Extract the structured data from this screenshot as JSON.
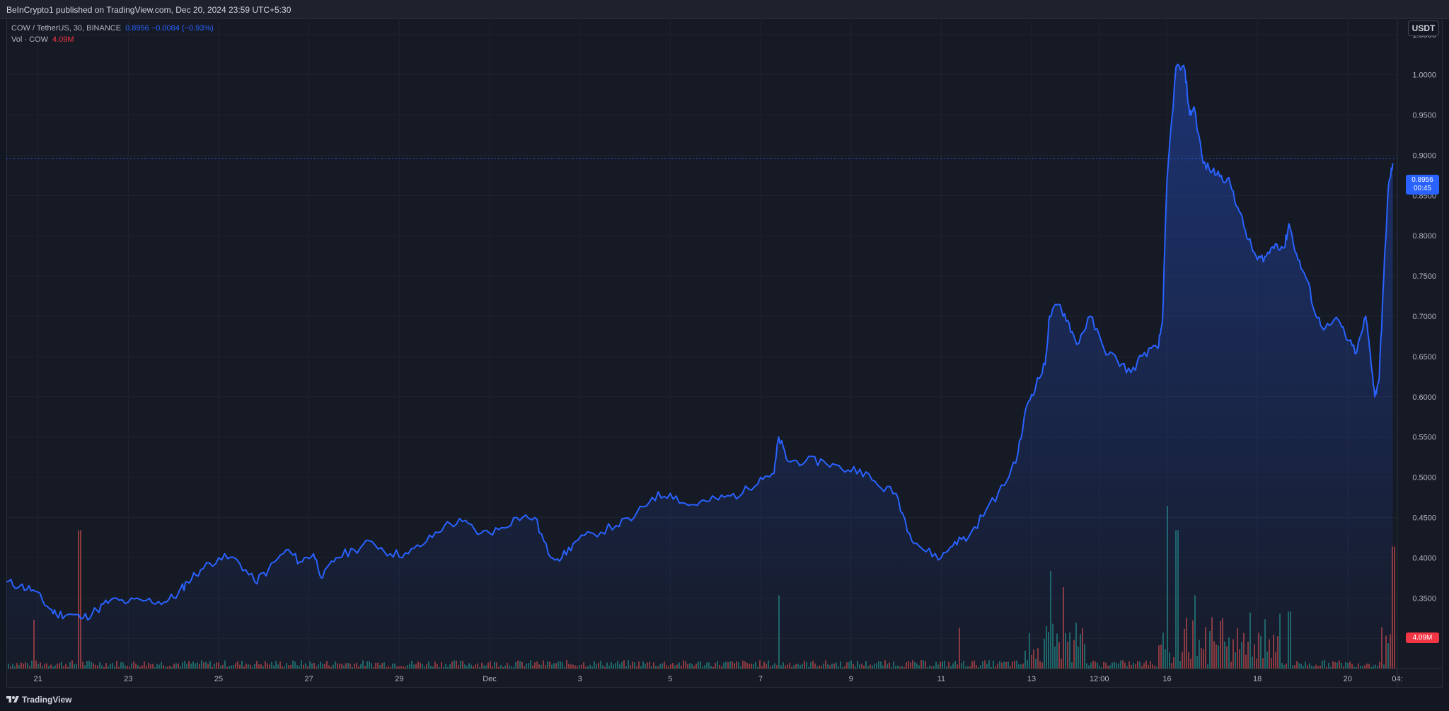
{
  "header": {
    "published_text": "BeInCrypto1 published on TradingView.com, Dec 20, 2024 23:59 UTC+5:30"
  },
  "legend": {
    "symbol": "COW / TetherUS, 30, BINANCE",
    "price_change": "0.8956  −0.0084 (−0.93%)",
    "volume_label": "Vol · COW",
    "volume_value": "4.09M"
  },
  "currency_button": "USDT",
  "price_tag": {
    "price": "0.8956",
    "countdown": "00:45"
  },
  "volume_tag": "4.09M",
  "footer": {
    "brand": "TradingView"
  },
  "colors": {
    "line": "#2962ff",
    "area_top": "#2962ff",
    "volume_up": "#26a69a",
    "volume_down": "#ef5350",
    "grid": "#1f2330",
    "axis_text": "#b2b5be"
  },
  "chart_data": {
    "type": "area",
    "title": "COW / TetherUS, 30, BINANCE",
    "xlabel": "",
    "ylabel": "",
    "grid": true,
    "legend_position": "top-left",
    "ylim": [
      0.265,
      1.07
    ],
    "y_ticks": [
      "1.0500",
      "1.0000",
      "0.9500",
      "0.9000",
      "0.8500",
      "0.8000",
      "0.7500",
      "0.7000",
      "0.6500",
      "0.6000",
      "0.5500",
      "0.5000",
      "0.4500",
      "0.4000",
      "0.3500",
      "0.3000"
    ],
    "y_tick_values": [
      1.05,
      1.0,
      0.95,
      0.9,
      0.85,
      0.8,
      0.75,
      0.7,
      0.65,
      0.6,
      0.55,
      0.5,
      0.45,
      0.4,
      0.35,
      0.3
    ],
    "x_ticks": [
      "21",
      "23",
      "25",
      "27",
      "29",
      "Dec",
      "3",
      "5",
      "7",
      "9",
      "11",
      "13",
      "12:00",
      "16",
      "18",
      "20",
      "04:"
    ],
    "x_tick_positions_days": [
      0,
      2,
      4,
      6,
      8,
      10,
      12,
      14,
      16,
      18,
      20,
      22,
      23.5,
      25,
      27,
      29,
      30.1
    ],
    "x_start_day": -0.7,
    "x_end_day": 30.1,
    "series": [
      {
        "values_xy": [
          [
            -0.7,
            0.37
          ],
          [
            -0.4,
            0.365
          ],
          [
            -0.1,
            0.36
          ],
          [
            0.2,
            0.34
          ],
          [
            0.4,
            0.33
          ],
          [
            0.7,
            0.33
          ],
          [
            1.0,
            0.325
          ],
          [
            1.3,
            0.335
          ],
          [
            1.6,
            0.347
          ],
          [
            2.0,
            0.345
          ],
          [
            2.4,
            0.347
          ],
          [
            2.8,
            0.345
          ],
          [
            3.1,
            0.355
          ],
          [
            3.3,
            0.37
          ],
          [
            3.6,
            0.385
          ],
          [
            4.0,
            0.4
          ],
          [
            4.4,
            0.398
          ],
          [
            4.8,
            0.37
          ],
          [
            5.1,
            0.385
          ],
          [
            5.5,
            0.41
          ],
          [
            5.8,
            0.395
          ],
          [
            6.1,
            0.405
          ],
          [
            6.3,
            0.375
          ],
          [
            6.6,
            0.4
          ],
          [
            7.0,
            0.41
          ],
          [
            7.4,
            0.42
          ],
          [
            7.8,
            0.405
          ],
          [
            8.2,
            0.405
          ],
          [
            8.6,
            0.42
          ],
          [
            9.0,
            0.44
          ],
          [
            9.4,
            0.445
          ],
          [
            9.8,
            0.43
          ],
          [
            10.2,
            0.435
          ],
          [
            10.6,
            0.45
          ],
          [
            11.0,
            0.45
          ],
          [
            11.3,
            0.405
          ],
          [
            11.6,
            0.4
          ],
          [
            11.9,
            0.42
          ],
          [
            12.3,
            0.43
          ],
          [
            12.8,
            0.44
          ],
          [
            13.2,
            0.45
          ],
          [
            13.6,
            0.475
          ],
          [
            14.0,
            0.48
          ],
          [
            14.4,
            0.465
          ],
          [
            14.8,
            0.47
          ],
          [
            15.2,
            0.475
          ],
          [
            15.6,
            0.48
          ],
          [
            16.0,
            0.5
          ],
          [
            16.3,
            0.505
          ],
          [
            16.4,
            0.55
          ],
          [
            16.6,
            0.52
          ],
          [
            17.0,
            0.52
          ],
          [
            17.4,
            0.52
          ],
          [
            17.8,
            0.51
          ],
          [
            18.2,
            0.51
          ],
          [
            18.6,
            0.49
          ],
          [
            19.0,
            0.48
          ],
          [
            19.3,
            0.43
          ],
          [
            19.6,
            0.41
          ],
          [
            20.0,
            0.4
          ],
          [
            20.3,
            0.42
          ],
          [
            20.6,
            0.425
          ],
          [
            21.0,
            0.46
          ],
          [
            21.4,
            0.49
          ],
          [
            21.7,
            0.53
          ],
          [
            21.9,
            0.59
          ],
          [
            22.1,
            0.615
          ],
          [
            22.3,
            0.64
          ],
          [
            22.4,
            0.7
          ],
          [
            22.6,
            0.715
          ],
          [
            22.8,
            0.695
          ],
          [
            23.0,
            0.665
          ],
          [
            23.3,
            0.7
          ],
          [
            23.6,
            0.66
          ],
          [
            23.9,
            0.645
          ],
          [
            24.2,
            0.63
          ],
          [
            24.5,
            0.655
          ],
          [
            24.8,
            0.66
          ],
          [
            24.9,
            0.695
          ],
          [
            25.0,
            0.87
          ],
          [
            25.2,
            1.01
          ],
          [
            25.4,
            1.005
          ],
          [
            25.5,
            0.95
          ],
          [
            25.6,
            0.96
          ],
          [
            25.8,
            0.89
          ],
          [
            26.0,
            0.88
          ],
          [
            26.2,
            0.875
          ],
          [
            26.4,
            0.865
          ],
          [
            26.6,
            0.83
          ],
          [
            26.8,
            0.795
          ],
          [
            27.0,
            0.77
          ],
          [
            27.2,
            0.775
          ],
          [
            27.4,
            0.79
          ],
          [
            27.6,
            0.785
          ],
          [
            27.7,
            0.815
          ],
          [
            27.9,
            0.77
          ],
          [
            28.1,
            0.745
          ],
          [
            28.3,
            0.7
          ],
          [
            28.5,
            0.685
          ],
          [
            28.8,
            0.695
          ],
          [
            29.0,
            0.67
          ],
          [
            29.2,
            0.655
          ],
          [
            29.4,
            0.7
          ],
          [
            29.5,
            0.655
          ],
          [
            29.6,
            0.6
          ],
          [
            29.7,
            0.625
          ],
          [
            29.8,
            0.75
          ],
          [
            29.9,
            0.86
          ],
          [
            30.0,
            0.89
          ]
        ]
      }
    ],
    "volume": {
      "spikes_xy": [
        [
          -0.1,
          0.3
        ],
        [
          0.9,
          0.85
        ],
        [
          16.4,
          0.45
        ],
        [
          20.4,
          0.25
        ],
        [
          22.4,
          0.6
        ],
        [
          22.7,
          0.5
        ],
        [
          25.0,
          1.0
        ],
        [
          25.2,
          0.85
        ],
        [
          25.6,
          0.45
        ],
        [
          27.7,
          0.35
        ],
        [
          30.0,
          0.75
        ]
      ]
    }
  }
}
